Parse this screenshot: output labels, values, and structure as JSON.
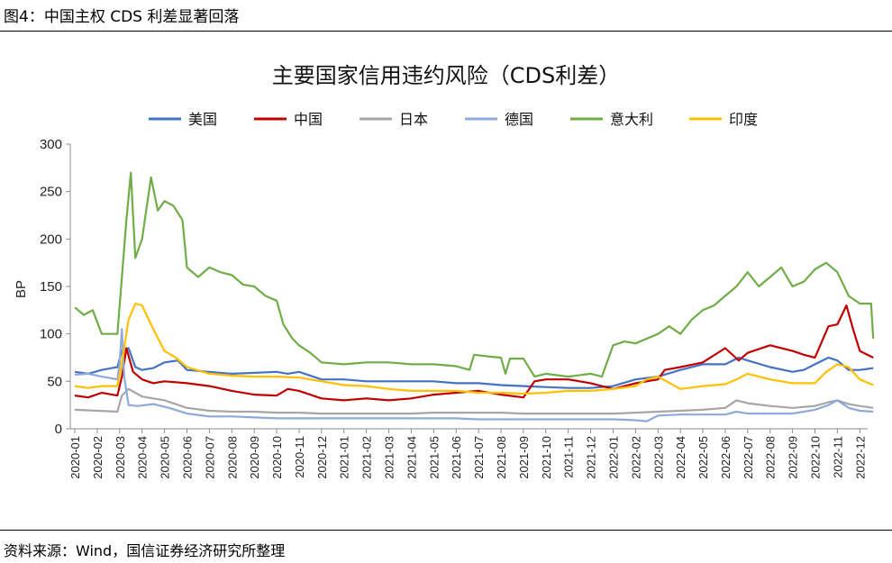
{
  "header": {
    "caption": "图4：中国主权 CDS 利差显著回落"
  },
  "footer": {
    "source": "资料来源：Wind，国信证券经济研究所整理"
  },
  "chart_data": {
    "type": "line",
    "title": "主要国家信用违约风险（CDS利差）",
    "ylabel": "BP",
    "xlabel": "",
    "ylim": [
      0,
      300
    ],
    "yticks": [
      0,
      50,
      100,
      150,
      200,
      250,
      300
    ],
    "legend_position": "top",
    "categories": [
      "2020-01",
      "2020-02",
      "2020-03",
      "2020-04",
      "2020-05",
      "2020-06",
      "2020-07",
      "2020-08",
      "2020-09",
      "2020-10",
      "2020-11",
      "2020-12",
      "2021-01",
      "2021-02",
      "2021-03",
      "2021-04",
      "2021-05",
      "2021-06",
      "2021-07",
      "2021-08",
      "2021-09",
      "2021-10",
      "2021-11",
      "2021-12",
      "2022-01",
      "2022-02",
      "2022-03",
      "2022-04",
      "2022-05",
      "2022-06",
      "2022-07",
      "2022-08",
      "2022-09",
      "2022-10",
      "2022-11",
      "2022-12"
    ],
    "series": [
      {
        "name": "美国",
        "color": "#4472C4",
        "points": [
          [
            0,
            60
          ],
          [
            0.6,
            58
          ],
          [
            1.2,
            62
          ],
          [
            1.9,
            65
          ],
          [
            2.1,
            82
          ],
          [
            2.4,
            85
          ],
          [
            2.7,
            65
          ],
          [
            3,
            62
          ],
          [
            3.5,
            64
          ],
          [
            4,
            70
          ],
          [
            4.6,
            72
          ],
          [
            5,
            62
          ],
          [
            6,
            60
          ],
          [
            7,
            58
          ],
          [
            8,
            59
          ],
          [
            9,
            60
          ],
          [
            9.5,
            58
          ],
          [
            10,
            60
          ],
          [
            11,
            52
          ],
          [
            12,
            52
          ],
          [
            13,
            50
          ],
          [
            14,
            50
          ],
          [
            15,
            50
          ],
          [
            16,
            50
          ],
          [
            17,
            48
          ],
          [
            18,
            48
          ],
          [
            19,
            46
          ],
          [
            20,
            45
          ],
          [
            21,
            44
          ],
          [
            22,
            43
          ],
          [
            23,
            43
          ],
          [
            24,
            45
          ],
          [
            25,
            52
          ],
          [
            26,
            55
          ],
          [
            27,
            62
          ],
          [
            28,
            68
          ],
          [
            29,
            68
          ],
          [
            29.6,
            75
          ],
          [
            30,
            72
          ],
          [
            31,
            65
          ],
          [
            32,
            60
          ],
          [
            32.5,
            62
          ],
          [
            33,
            68
          ],
          [
            33.6,
            75
          ],
          [
            34,
            72
          ],
          [
            34.5,
            62
          ],
          [
            35,
            62
          ],
          [
            35.6,
            64
          ]
        ]
      },
      {
        "name": "中国",
        "color": "#C00000",
        "points": [
          [
            0,
            35
          ],
          [
            0.6,
            33
          ],
          [
            1.2,
            38
          ],
          [
            1.9,
            35
          ],
          [
            2.1,
            55
          ],
          [
            2.3,
            85
          ],
          [
            2.6,
            60
          ],
          [
            3,
            52
          ],
          [
            3.5,
            48
          ],
          [
            4,
            50
          ],
          [
            5,
            48
          ],
          [
            6,
            45
          ],
          [
            7,
            40
          ],
          [
            8,
            36
          ],
          [
            9,
            35
          ],
          [
            9.5,
            42
          ],
          [
            10,
            40
          ],
          [
            11,
            32
          ],
          [
            12,
            30
          ],
          [
            13,
            32
          ],
          [
            14,
            30
          ],
          [
            15,
            32
          ],
          [
            16,
            36
          ],
          [
            17,
            38
          ],
          [
            18,
            40
          ],
          [
            19,
            36
          ],
          [
            20,
            33
          ],
          [
            20.5,
            50
          ],
          [
            21,
            52
          ],
          [
            22,
            52
          ],
          [
            23,
            48
          ],
          [
            24,
            42
          ],
          [
            25,
            48
          ],
          [
            26,
            52
          ],
          [
            26.3,
            62
          ],
          [
            27,
            65
          ],
          [
            28,
            70
          ],
          [
            29,
            85
          ],
          [
            29.6,
            72
          ],
          [
            30,
            80
          ],
          [
            31,
            88
          ],
          [
            32,
            82
          ],
          [
            32.5,
            78
          ],
          [
            33,
            75
          ],
          [
            33.6,
            108
          ],
          [
            34,
            110
          ],
          [
            34.4,
            130
          ],
          [
            34.7,
            105
          ],
          [
            35,
            82
          ],
          [
            35.6,
            75
          ]
        ]
      },
      {
        "name": "日本",
        "color": "#A6A6A6",
        "points": [
          [
            0,
            20
          ],
          [
            1,
            19
          ],
          [
            1.9,
            18
          ],
          [
            2.1,
            35
          ],
          [
            2.4,
            42
          ],
          [
            2.7,
            38
          ],
          [
            3,
            34
          ],
          [
            4,
            30
          ],
          [
            5,
            22
          ],
          [
            6,
            19
          ],
          [
            7,
            18
          ],
          [
            8,
            18
          ],
          [
            9,
            17
          ],
          [
            10,
            17
          ],
          [
            11,
            16
          ],
          [
            12,
            16
          ],
          [
            13,
            16
          ],
          [
            14,
            16
          ],
          [
            15,
            16
          ],
          [
            16,
            17
          ],
          [
            17,
            17
          ],
          [
            18,
            17
          ],
          [
            19,
            17
          ],
          [
            20,
            16
          ],
          [
            21,
            16
          ],
          [
            22,
            16
          ],
          [
            23,
            16
          ],
          [
            24,
            16
          ],
          [
            25,
            17
          ],
          [
            26,
            18
          ],
          [
            27,
            19
          ],
          [
            28,
            20
          ],
          [
            29,
            22
          ],
          [
            29.5,
            30
          ],
          [
            30,
            27
          ],
          [
            31,
            24
          ],
          [
            32,
            22
          ],
          [
            33,
            24
          ],
          [
            33.6,
            28
          ],
          [
            34,
            30
          ],
          [
            34.5,
            26
          ],
          [
            35,
            24
          ],
          [
            35.6,
            22
          ]
        ]
      },
      {
        "name": "德国",
        "color": "#8EA9DB",
        "points": [
          [
            0,
            57
          ],
          [
            0.6,
            58
          ],
          [
            1.2,
            55
          ],
          [
            1.9,
            52
          ],
          [
            2,
            70
          ],
          [
            2.1,
            105
          ],
          [
            2.2,
            55
          ],
          [
            2.4,
            25
          ],
          [
            2.8,
            24
          ],
          [
            3.5,
            26
          ],
          [
            4.2,
            22
          ],
          [
            5,
            16
          ],
          [
            6,
            13
          ],
          [
            7,
            13
          ],
          [
            8,
            12
          ],
          [
            9,
            11
          ],
          [
            10,
            11
          ],
          [
            11,
            11
          ],
          [
            12,
            11
          ],
          [
            13,
            11
          ],
          [
            14,
            11
          ],
          [
            15,
            11
          ],
          [
            16,
            11
          ],
          [
            17,
            11
          ],
          [
            18,
            10
          ],
          [
            19,
            10
          ],
          [
            20,
            10
          ],
          [
            21,
            10
          ],
          [
            22,
            10
          ],
          [
            23,
            10
          ],
          [
            24,
            10
          ],
          [
            25,
            9
          ],
          [
            25.5,
            8
          ],
          [
            26,
            14
          ],
          [
            27,
            15
          ],
          [
            28,
            15
          ],
          [
            29,
            15
          ],
          [
            29.5,
            18
          ],
          [
            30,
            16
          ],
          [
            31,
            16
          ],
          [
            32,
            16
          ],
          [
            33,
            20
          ],
          [
            33.6,
            25
          ],
          [
            34,
            30
          ],
          [
            34.5,
            22
          ],
          [
            35,
            19
          ],
          [
            35.6,
            18
          ]
        ]
      },
      {
        "name": "意大利",
        "color": "#70AD47",
        "points": [
          [
            0,
            128
          ],
          [
            0.4,
            120
          ],
          [
            0.8,
            125
          ],
          [
            1.2,
            100
          ],
          [
            1.9,
            100
          ],
          [
            2.1,
            160
          ],
          [
            2.3,
            220
          ],
          [
            2.5,
            270
          ],
          [
            2.7,
            180
          ],
          [
            3,
            200
          ],
          [
            3.4,
            265
          ],
          [
            3.7,
            230
          ],
          [
            4,
            240
          ],
          [
            4.4,
            235
          ],
          [
            4.8,
            220
          ],
          [
            5,
            170
          ],
          [
            5.5,
            160
          ],
          [
            6,
            170
          ],
          [
            6.5,
            165
          ],
          [
            7,
            162
          ],
          [
            7.5,
            152
          ],
          [
            8,
            150
          ],
          [
            8.5,
            140
          ],
          [
            9,
            135
          ],
          [
            9.3,
            110
          ],
          [
            9.7,
            95
          ],
          [
            10,
            88
          ],
          [
            10.5,
            80
          ],
          [
            11,
            70
          ],
          [
            12,
            68
          ],
          [
            13,
            70
          ],
          [
            14,
            70
          ],
          [
            15,
            68
          ],
          [
            16,
            68
          ],
          [
            17,
            66
          ],
          [
            17.6,
            62
          ],
          [
            17.8,
            78
          ],
          [
            18.5,
            76
          ],
          [
            19,
            75
          ],
          [
            19.2,
            58
          ],
          [
            19.4,
            74
          ],
          [
            20,
            74
          ],
          [
            20.5,
            55
          ],
          [
            21,
            58
          ],
          [
            22,
            55
          ],
          [
            23,
            58
          ],
          [
            23.5,
            55
          ],
          [
            24,
            88
          ],
          [
            24.5,
            92
          ],
          [
            25,
            90
          ],
          [
            26,
            100
          ],
          [
            26.5,
            108
          ],
          [
            27,
            100
          ],
          [
            27.5,
            115
          ],
          [
            28,
            125
          ],
          [
            28.5,
            130
          ],
          [
            29,
            140
          ],
          [
            29.5,
            150
          ],
          [
            30,
            165
          ],
          [
            30.5,
            150
          ],
          [
            31,
            160
          ],
          [
            31.5,
            170
          ],
          [
            32,
            150
          ],
          [
            32.5,
            155
          ],
          [
            33,
            168
          ],
          [
            33.5,
            175
          ],
          [
            34,
            165
          ],
          [
            34.5,
            140
          ],
          [
            35,
            132
          ],
          [
            35.5,
            132
          ],
          [
            35.6,
            95
          ]
        ]
      },
      {
        "name": "印度",
        "color": "#FFC000",
        "points": [
          [
            0,
            45
          ],
          [
            0.6,
            43
          ],
          [
            1.2,
            45
          ],
          [
            1.9,
            45
          ],
          [
            2.1,
            70
          ],
          [
            2.4,
            115
          ],
          [
            2.7,
            132
          ],
          [
            3,
            130
          ],
          [
            3.5,
            105
          ],
          [
            4,
            82
          ],
          [
            4.5,
            75
          ],
          [
            5,
            65
          ],
          [
            6,
            58
          ],
          [
            7,
            56
          ],
          [
            8,
            55
          ],
          [
            9,
            55
          ],
          [
            10,
            54
          ],
          [
            11,
            50
          ],
          [
            12,
            46
          ],
          [
            13,
            45
          ],
          [
            14,
            42
          ],
          [
            15,
            40
          ],
          [
            16,
            40
          ],
          [
            17,
            40
          ],
          [
            18,
            38
          ],
          [
            19,
            38
          ],
          [
            20,
            37
          ],
          [
            21,
            38
          ],
          [
            22,
            40
          ],
          [
            23,
            40
          ],
          [
            24,
            42
          ],
          [
            25,
            45
          ],
          [
            25.5,
            52
          ],
          [
            26,
            55
          ],
          [
            27,
            42
          ],
          [
            28,
            45
          ],
          [
            29,
            47
          ],
          [
            29.5,
            52
          ],
          [
            30,
            58
          ],
          [
            31,
            52
          ],
          [
            32,
            48
          ],
          [
            33,
            48
          ],
          [
            33.5,
            60
          ],
          [
            34,
            68
          ],
          [
            34.5,
            65
          ],
          [
            35,
            52
          ],
          [
            35.6,
            46
          ]
        ]
      }
    ]
  }
}
